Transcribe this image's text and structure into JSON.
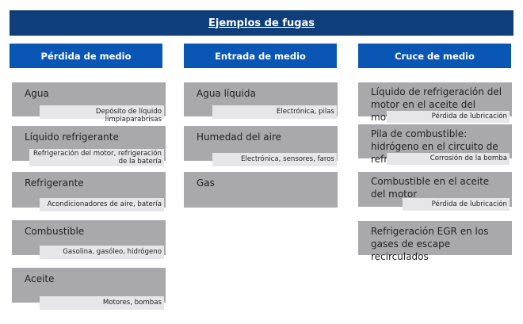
{
  "title": "Ejemplos de fugas",
  "colors": {
    "title_bg": "#0e3f7b",
    "header_bg": "#0a56b4",
    "box_bg": "#a9a9ac",
    "sub_bg": "#e6e6e8"
  },
  "columns": [
    {
      "header": "Pérdida de medio",
      "items": [
        {
          "label": "Agua",
          "detail": "Depósito de líquido limpiaparabrisas"
        },
        {
          "label": "Líquido refrigerante",
          "detail": "Refrigeración del motor, refrigeración de la batería"
        },
        {
          "label": "Refrigerante",
          "detail": "Acondicionadores de aire, batería"
        },
        {
          "label": "Combustible",
          "detail": "Gasolina, gasóleo, hidrógeno"
        },
        {
          "label": "Aceite",
          "detail": "Motores, bombas"
        }
      ]
    },
    {
      "header": "Entrada de medio",
      "items": [
        {
          "label": "Agua líquida",
          "detail": "Electrónica, pilas"
        },
        {
          "label": "Humedad del aire",
          "detail": "Electrónica, sensores, faros"
        },
        {
          "label": "Gas"
        }
      ]
    },
    {
      "header": "Cruce de medio",
      "items": [
        {
          "label": "Líquido de refrigeración del motor en el aceite del motor",
          "detail": "Pérdida de lubricación"
        },
        {
          "label": "Pila de combustible: hidrógeno en el circuito de refrigeración",
          "detail": "Corrosión de la bomba"
        },
        {
          "label": "Combustible en el aceite del motor",
          "detail": "Pérdida de lubricación"
        },
        {
          "label": "Refrigeración EGR en los gases de escape recirculados"
        }
      ]
    }
  ]
}
